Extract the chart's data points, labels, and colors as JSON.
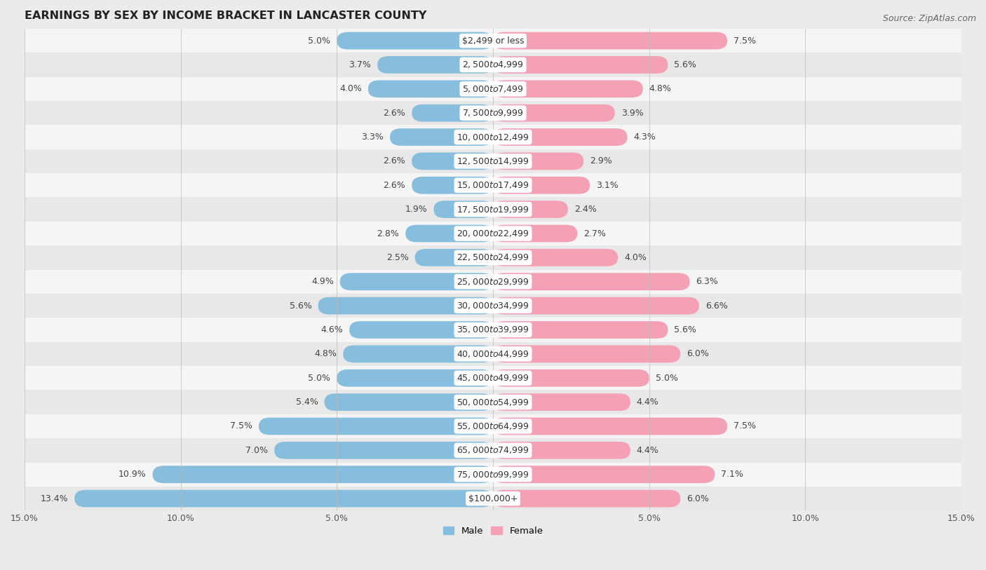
{
  "title": "EARNINGS BY SEX BY INCOME BRACKET IN LANCASTER COUNTY",
  "source": "Source: ZipAtlas.com",
  "categories": [
    "$2,499 or less",
    "$2,500 to $4,999",
    "$5,000 to $7,499",
    "$7,500 to $9,999",
    "$10,000 to $12,499",
    "$12,500 to $14,999",
    "$15,000 to $17,499",
    "$17,500 to $19,999",
    "$20,000 to $22,499",
    "$22,500 to $24,999",
    "$25,000 to $29,999",
    "$30,000 to $34,999",
    "$35,000 to $39,999",
    "$40,000 to $44,999",
    "$45,000 to $49,999",
    "$50,000 to $54,999",
    "$55,000 to $64,999",
    "$65,000 to $74,999",
    "$75,000 to $99,999",
    "$100,000+"
  ],
  "male_values": [
    5.0,
    3.7,
    4.0,
    2.6,
    3.3,
    2.6,
    2.6,
    1.9,
    2.8,
    2.5,
    4.9,
    5.6,
    4.6,
    4.8,
    5.0,
    5.4,
    7.5,
    7.0,
    10.9,
    13.4
  ],
  "female_values": [
    7.5,
    5.6,
    4.8,
    3.9,
    4.3,
    2.9,
    3.1,
    2.4,
    2.7,
    4.0,
    6.3,
    6.6,
    5.6,
    6.0,
    5.0,
    4.4,
    7.5,
    4.4,
    7.1,
    6.0
  ],
  "male_color": "#87BEDD",
  "female_color": "#F4A0B5",
  "row_color_odd": "#F5F5F5",
  "row_color_even": "#E8E8E8",
  "bg_color": "#EBEBEB",
  "xlim": 15.0,
  "bar_height": 0.72,
  "title_fontsize": 11.5,
  "label_fontsize": 9,
  "category_fontsize": 9,
  "tick_fontsize": 9,
  "source_fontsize": 9
}
